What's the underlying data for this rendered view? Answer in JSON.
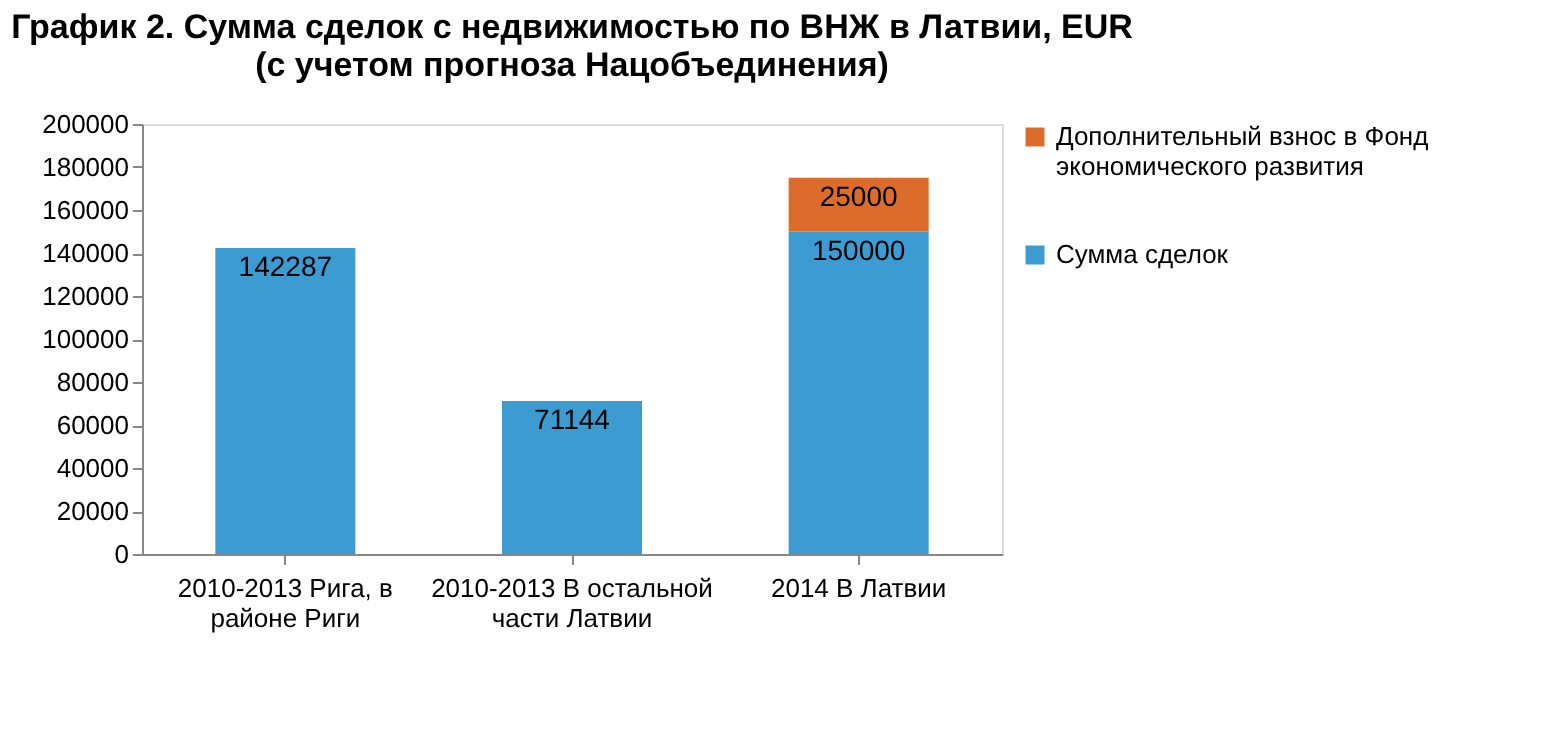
{
  "chart_data": {
    "type": "bar",
    "stacked": true,
    "title": "График 2. Сумма сделок с недвижимостью по ВНЖ в Латвии, EUR\n(с учетом прогноза Нацобъединения)",
    "categories": [
      "2010-2013 Рига, в районе Риги",
      "2010-2013 В остальной части Латвии",
      "2014 В Латвии"
    ],
    "series": [
      {
        "name": "Сумма сделок",
        "color": "#3c9cd2",
        "values": [
          142287,
          71144,
          150000
        ]
      },
      {
        "name": "Дополнительный взнос в Фонд экономического развития",
        "color": "#dd6c2c",
        "values": [
          null,
          null,
          25000
        ]
      }
    ],
    "ylim": [
      0,
      200000
    ],
    "yticks": [
      0,
      20000,
      40000,
      60000,
      80000,
      100000,
      120000,
      140000,
      160000,
      180000,
      200000
    ],
    "data_labels": true,
    "legend": "right",
    "grid": false
  }
}
